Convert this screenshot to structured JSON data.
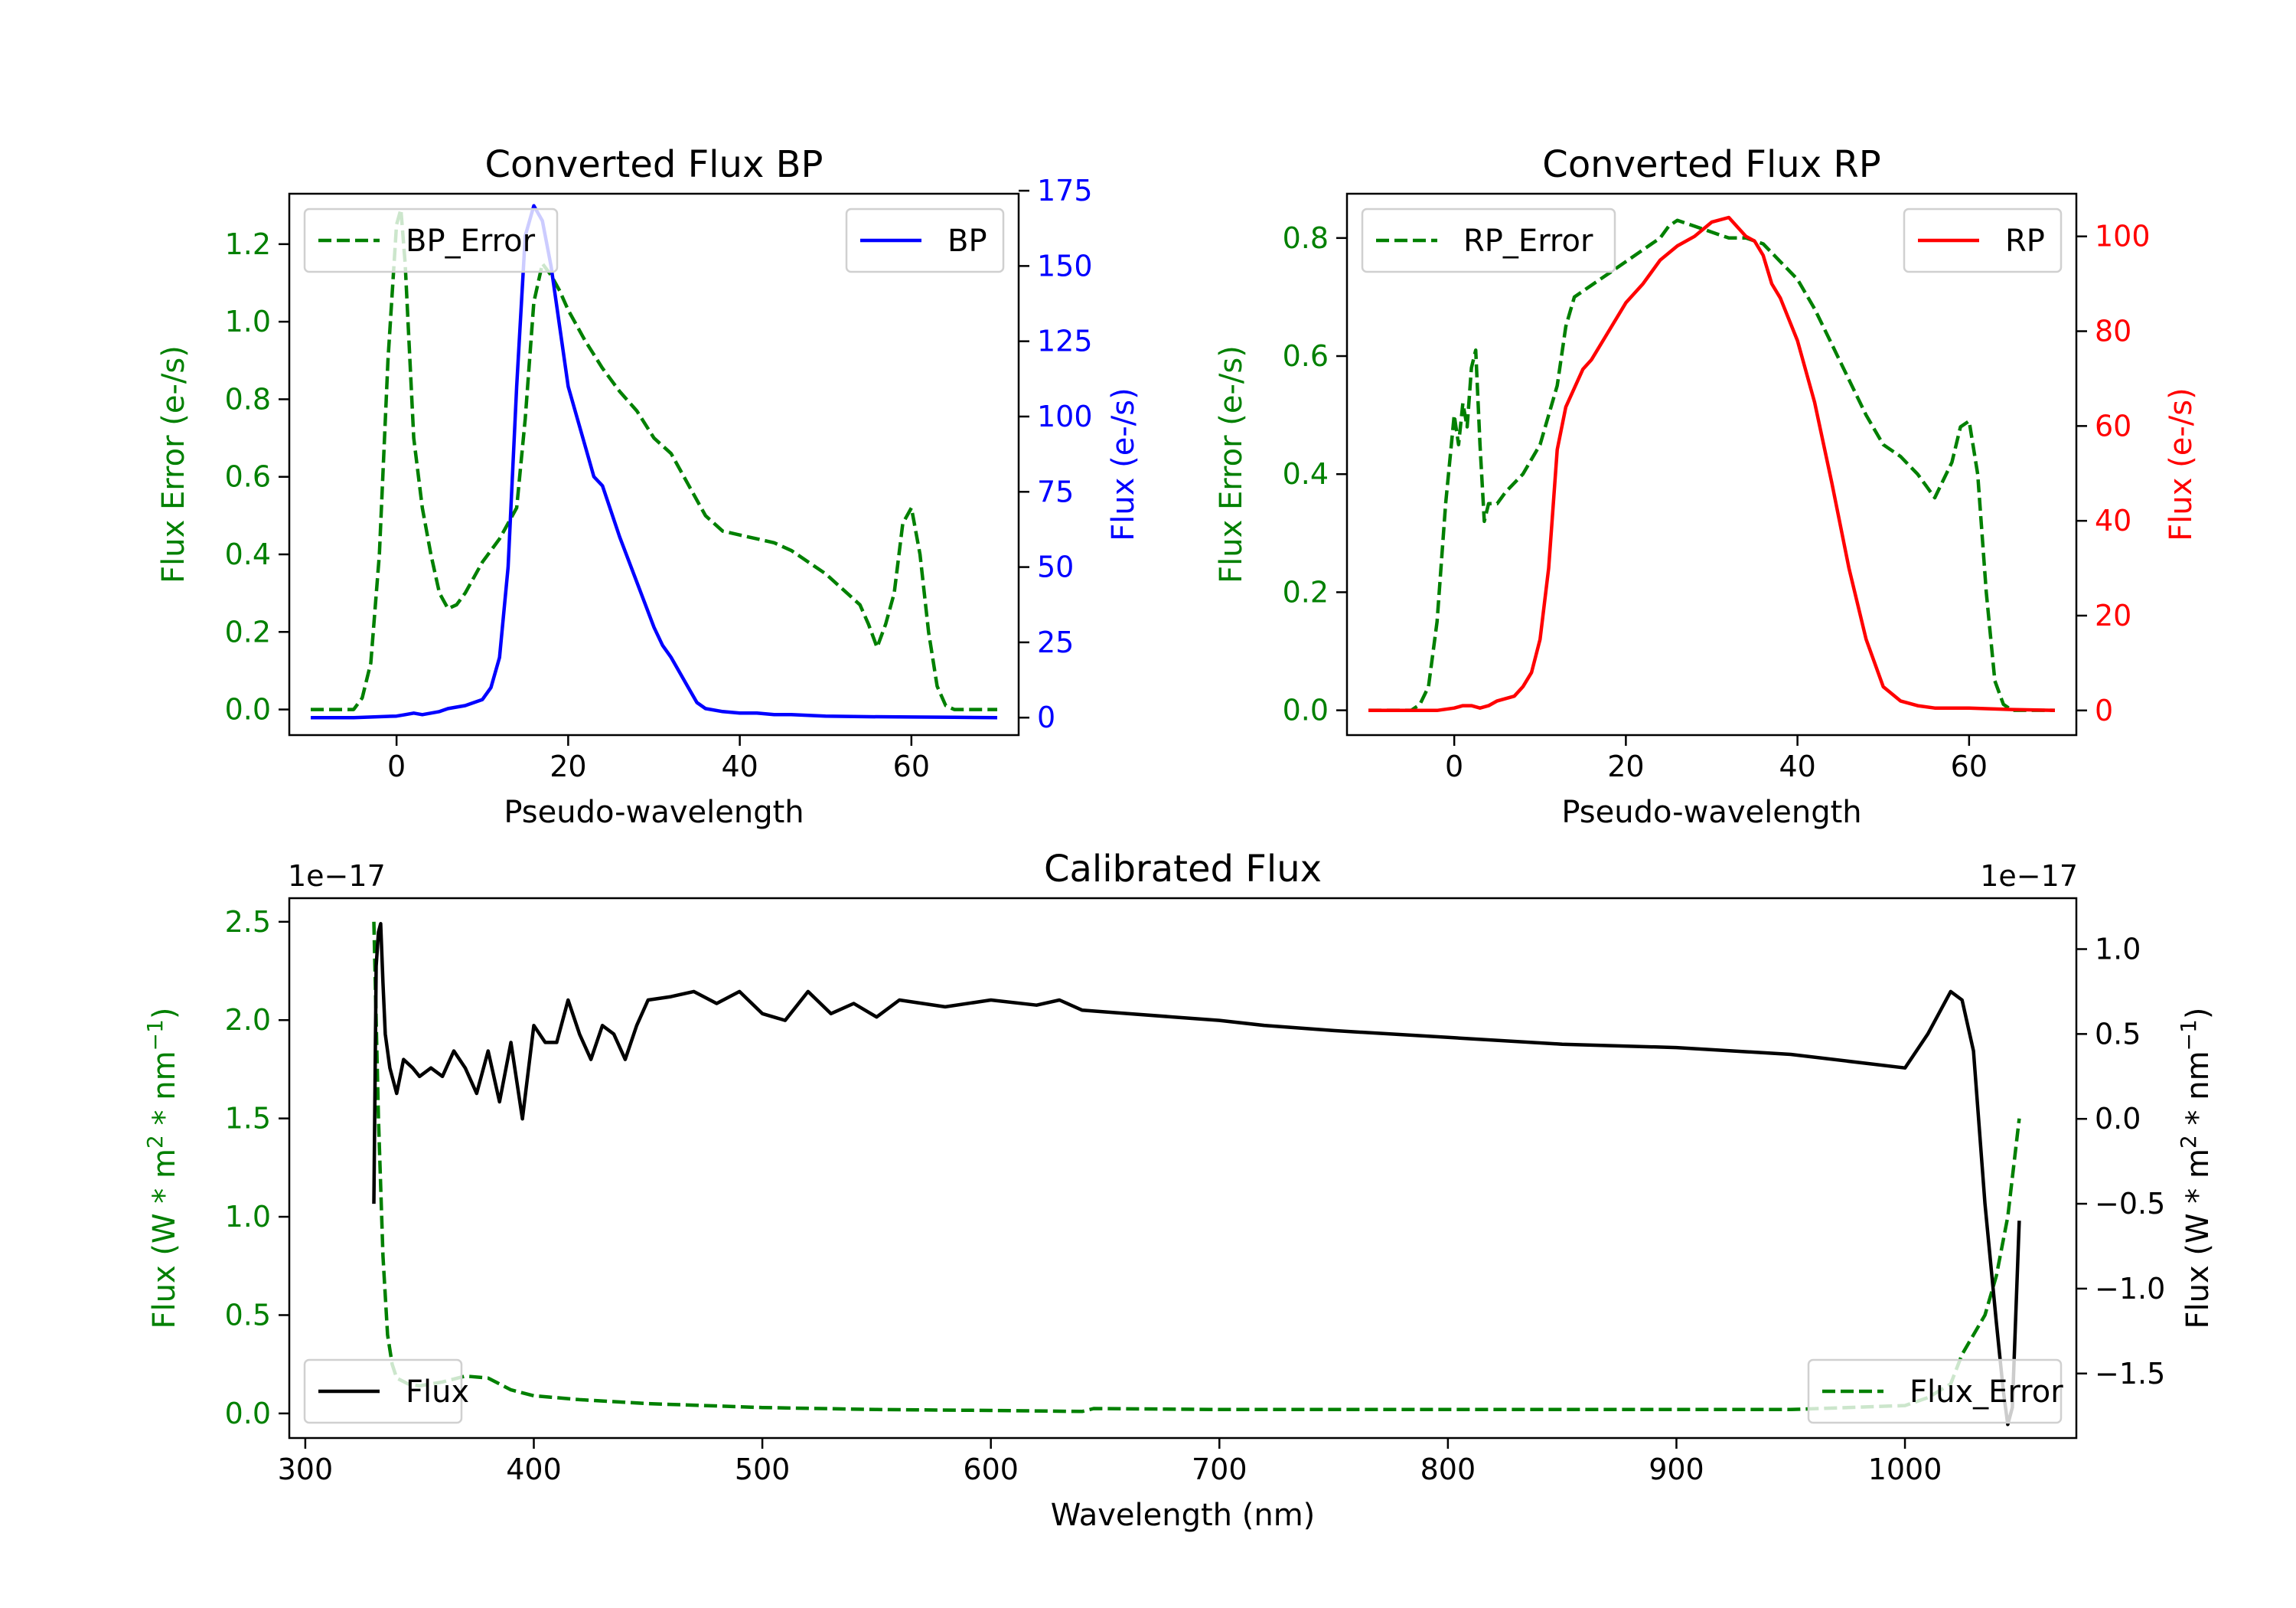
{
  "colors": {
    "err": "#008000",
    "bp": "#0000ff",
    "rp": "#ff0000",
    "flux": "#000000"
  },
  "chart_data": [
    {
      "type": "line",
      "title": "Converted Flux BP",
      "xlabel": "Pseudo-wavelength",
      "ylabel_left": "Flux Error (e-/s)",
      "ylabel_right": "Flux (e-/s)",
      "xlim": [
        -12.5,
        72.5
      ],
      "ylim_left": [
        -0.066,
        1.33
      ],
      "ylim_right": [
        -5.8,
        174
      ],
      "xticks": [
        0,
        20,
        40,
        60
      ],
      "yticks_left": [
        "0.0",
        "0.2",
        "0.4",
        "0.6",
        "0.8",
        "1.0",
        "1.2"
      ],
      "yticks_right": [
        "0",
        "25",
        "50",
        "75",
        "100",
        "125",
        "150",
        "175"
      ],
      "series": [
        {
          "name": "BP_Error",
          "axis": "left",
          "style": "dashed",
          "color": "#008000",
          "x": [
            -10,
            -5,
            -4,
            -3,
            -2,
            -1,
            0,
            0.5,
            1,
            2,
            3,
            4,
            5,
            6,
            7,
            8,
            10,
            12,
            14,
            15,
            16,
            17,
            18,
            19,
            20,
            22,
            24,
            26,
            28,
            30,
            32,
            34,
            36,
            38,
            40,
            42,
            44,
            46,
            48,
            50,
            52,
            54,
            55,
            56,
            57,
            58,
            59,
            60,
            61,
            62,
            63,
            64,
            65,
            70
          ],
          "y": [
            0,
            0,
            0.03,
            0.12,
            0.4,
            0.9,
            1.25,
            1.29,
            1.15,
            0.7,
            0.52,
            0.4,
            0.3,
            0.26,
            0.27,
            0.3,
            0.38,
            0.44,
            0.52,
            0.75,
            1.05,
            1.15,
            1.12,
            1.08,
            1.03,
            0.95,
            0.88,
            0.82,
            0.77,
            0.7,
            0.66,
            0.58,
            0.5,
            0.46,
            0.45,
            0.44,
            0.43,
            0.41,
            0.38,
            0.35,
            0.31,
            0.27,
            0.22,
            0.16,
            0.22,
            0.3,
            0.48,
            0.52,
            0.4,
            0.2,
            0.06,
            0.01,
            0,
            0
          ]
        },
        {
          "name": "BP",
          "axis": "right",
          "style": "solid",
          "color": "#0000ff",
          "x": [
            -10,
            -5,
            0,
            1,
            2,
            3,
            4,
            5,
            6,
            8,
            10,
            11,
            12,
            13,
            14,
            15,
            16,
            17,
            18,
            19,
            20,
            21,
            22,
            23,
            24,
            26,
            28,
            30,
            31,
            32,
            33,
            34,
            35,
            36,
            38,
            40,
            42,
            44,
            46,
            50,
            55,
            60,
            65,
            70
          ],
          "y": [
            0,
            0,
            0.5,
            1,
            1.5,
            1,
            1.5,
            2,
            3,
            4,
            6,
            10,
            20,
            50,
            110,
            160,
            170,
            165,
            150,
            130,
            110,
            100,
            90,
            80,
            77,
            60,
            45,
            30,
            24,
            20,
            15,
            10,
            5,
            3,
            2,
            1.5,
            1.5,
            1,
            1,
            0.5,
            0.3,
            0.2,
            0.1,
            0
          ]
        }
      ],
      "legend": [
        {
          "label": "BP_Error",
          "position": "upper-left"
        },
        {
          "label": "BP",
          "position": "upper-right"
        }
      ]
    },
    {
      "type": "line",
      "title": "Converted Flux RP",
      "xlabel": "Pseudo-wavelength",
      "ylabel_left": "Flux Error (e-/s)",
      "ylabel_right": "Flux (e-/s)",
      "xlim": [
        -12.5,
        72.5
      ],
      "ylim_left": [
        -0.042,
        0.875
      ],
      "ylim_right": [
        -5.2,
        109
      ],
      "xticks": [
        0,
        20,
        40,
        60
      ],
      "yticks_left": [
        "0.0",
        "0.2",
        "0.4",
        "0.6",
        "0.8"
      ],
      "yticks_right": [
        "0",
        "20",
        "40",
        "60",
        "80",
        "100"
      ],
      "series": [
        {
          "name": "RP_Error",
          "axis": "left",
          "style": "dashed",
          "color": "#008000",
          "x": [
            -10,
            -5,
            -4,
            -3,
            -2,
            -1,
            0,
            0.5,
            1,
            1.5,
            2,
            2.5,
            3,
            3.5,
            4,
            5,
            6,
            8,
            10,
            12,
            13,
            14,
            16,
            18,
            20,
            22,
            24,
            25,
            26,
            28,
            30,
            32,
            34,
            36,
            38,
            40,
            42,
            44,
            46,
            48,
            50,
            52,
            54,
            55,
            56,
            57,
            58,
            59,
            60,
            61,
            62,
            63,
            64,
            65,
            70
          ],
          "y": [
            0,
            0,
            0.01,
            0.04,
            0.15,
            0.35,
            0.5,
            0.45,
            0.52,
            0.48,
            0.58,
            0.61,
            0.45,
            0.32,
            0.35,
            0.35,
            0.37,
            0.4,
            0.45,
            0.55,
            0.65,
            0.7,
            0.72,
            0.74,
            0.76,
            0.78,
            0.8,
            0.82,
            0.83,
            0.82,
            0.81,
            0.8,
            0.8,
            0.79,
            0.76,
            0.73,
            0.68,
            0.62,
            0.56,
            0.5,
            0.45,
            0.43,
            0.4,
            0.38,
            0.36,
            0.39,
            0.42,
            0.48,
            0.49,
            0.4,
            0.2,
            0.05,
            0.01,
            0,
            0
          ]
        },
        {
          "name": "RP",
          "axis": "right",
          "style": "solid",
          "color": "#ff0000",
          "x": [
            -10,
            -5,
            -2,
            0,
            1,
            2,
            3,
            4,
            5,
            6,
            7,
            8,
            9,
            10,
            11,
            12,
            13,
            14,
            15,
            16,
            18,
            20,
            22,
            24,
            26,
            28,
            30,
            32,
            34,
            35,
            36,
            37,
            38,
            40,
            42,
            44,
            46,
            48,
            50,
            52,
            54,
            56,
            60,
            65,
            70
          ],
          "y": [
            0,
            0,
            0,
            0.5,
            1,
            1,
            0.5,
            1,
            2,
            2.5,
            3,
            5,
            8,
            15,
            30,
            55,
            64,
            68,
            72,
            74,
            80,
            86,
            90,
            95,
            98,
            100,
            103,
            104,
            100,
            99,
            96,
            90,
            87,
            78,
            65,
            48,
            30,
            15,
            5,
            2,
            1,
            0.5,
            0.5,
            0.2,
            0
          ]
        }
      ],
      "legend": [
        {
          "label": "RP_Error",
          "position": "upper-left"
        },
        {
          "label": "RP",
          "position": "upper-right"
        }
      ]
    },
    {
      "type": "line",
      "title": "Calibrated Flux",
      "xlabel": "Wavelength (nm)",
      "ylabel_left": "Flux (W * m<sup>2</sup> * nm<sup>−1</sup>)",
      "ylabel_right": "Flux (W * m<sup>2</sup> * nm<sup>−1</sup>)",
      "offset_left": "1e−17",
      "offset_right": "1e−17",
      "xlim": [
        293,
        1075
      ],
      "ylim_left": [
        -0.125,
        2.62
      ],
      "ylim_right": [
        -1.88,
        1.3
      ],
      "xticks": [
        300,
        400,
        500,
        600,
        700,
        800,
        900,
        1000
      ],
      "yticks_left": [
        "0.0",
        "0.5",
        "1.0",
        "1.5",
        "2.0",
        "2.5"
      ],
      "yticks_right": [
        "−1.5",
        "−1.0",
        "−0.5",
        "0.0",
        "0.5",
        "1.0"
      ],
      "series": [
        {
          "name": "Flux_Error",
          "axis": "left",
          "style": "dashed",
          "color": "#008000",
          "x": [
            330,
            332,
            334,
            336,
            338,
            340,
            345,
            350,
            360,
            370,
            380,
            390,
            400,
            420,
            450,
            500,
            550,
            600,
            640,
            645,
            700,
            800,
            900,
            950,
            1000,
            1010,
            1020,
            1025,
            1030,
            1035,
            1040,
            1045,
            1050
          ],
          "y": [
            2.5,
            1.5,
            0.8,
            0.4,
            0.25,
            0.18,
            0.15,
            0.14,
            0.16,
            0.19,
            0.18,
            0.12,
            0.09,
            0.07,
            0.05,
            0.03,
            0.02,
            0.015,
            0.01,
            0.025,
            0.02,
            0.02,
            0.02,
            0.02,
            0.04,
            0.08,
            0.15,
            0.3,
            0.4,
            0.5,
            0.7,
            1.0,
            1.5
          ]
        },
        {
          "name": "Flux",
          "axis": "right",
          "style": "solid",
          "color": "#000000",
          "x": [
            330,
            331,
            332,
            333,
            334,
            335,
            337,
            340,
            343,
            347,
            350,
            355,
            360,
            365,
            370,
            375,
            380,
            385,
            390,
            395,
            400,
            405,
            410,
            415,
            420,
            425,
            430,
            435,
            440,
            445,
            450,
            460,
            470,
            480,
            490,
            500,
            510,
            520,
            530,
            540,
            550,
            560,
            580,
            600,
            620,
            630,
            640,
            650,
            660,
            680,
            700,
            720,
            750,
            800,
            850,
            900,
            950,
            1000,
            1010,
            1020,
            1025,
            1030,
            1035,
            1040,
            1043,
            1045,
            1047,
            1050
          ],
          "y": [
            -0.5,
            0.9,
            1.1,
            1.15,
            0.8,
            0.5,
            0.3,
            0.15,
            0.35,
            0.3,
            0.25,
            0.3,
            0.25,
            0.4,
            0.3,
            0.15,
            0.4,
            0.1,
            0.45,
            0.0,
            0.55,
            0.45,
            0.45,
            0.7,
            0.5,
            0.35,
            0.55,
            0.5,
            0.35,
            0.55,
            0.7,
            0.72,
            0.75,
            0.68,
            0.75,
            0.62,
            0.58,
            0.75,
            0.62,
            0.68,
            0.6,
            0.7,
            0.66,
            0.7,
            0.67,
            0.7,
            0.64,
            0.63,
            0.62,
            0.6,
            0.58,
            0.55,
            0.52,
            0.48,
            0.44,
            0.42,
            0.38,
            0.3,
            0.5,
            0.75,
            0.7,
            0.4,
            -0.5,
            -1.2,
            -1.6,
            -1.8,
            -1.7,
            -0.6
          ]
        }
      ],
      "legend": [
        {
          "label": "Flux",
          "position": "lower-left"
        },
        {
          "label": "Flux_Error",
          "position": "lower-right"
        }
      ]
    }
  ]
}
